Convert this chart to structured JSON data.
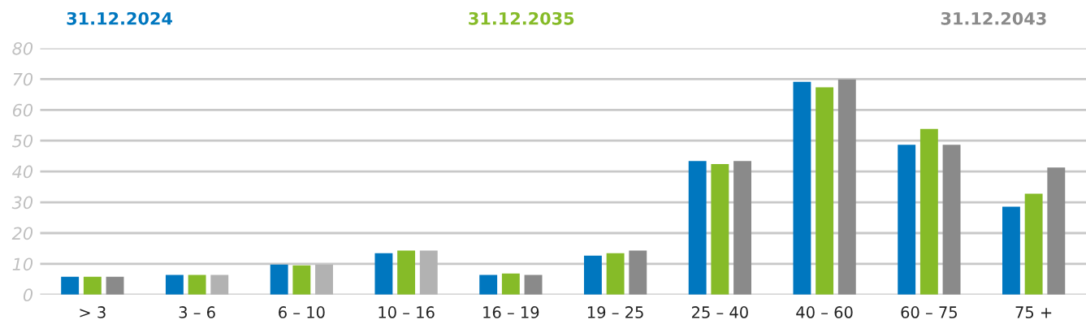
{
  "chart_data": {
    "type": "bar",
    "categories": [
      "> 3",
      "3 – 6",
      "6 – 10",
      "10 – 16",
      "16 – 19",
      "19 – 25",
      "25 – 40",
      "40 – 60",
      "60 – 75",
      "75 +"
    ],
    "series": [
      {
        "name": "31.12.2024",
        "color": "#0077bf",
        "values": [
          5.8,
          6.4,
          9.8,
          13.5,
          6.4,
          12.7,
          43.4,
          69.1,
          48.7,
          28.6
        ]
      },
      {
        "name": "31.12.2035",
        "color": "#86bb28",
        "values": [
          5.8,
          6.4,
          9.5,
          14.3,
          6.9,
          13.5,
          42.4,
          67.3,
          53.8,
          32.8
        ]
      },
      {
        "name": "31.12.2043",
        "color": "#8a8a8a",
        "colors": [
          "#8a8a8a",
          "#b2b2b2",
          "#b2b2b2",
          "#b2b2b2",
          "#8a8a8a",
          "#8a8a8a",
          "#8a8a8a",
          "#8a8a8a",
          "#8a8a8a",
          "#8a8a8a"
        ],
        "values": [
          5.8,
          6.4,
          9.8,
          14.3,
          6.4,
          14.3,
          43.4,
          69.9,
          48.7,
          41.3
        ]
      }
    ],
    "ylim": [
      0,
      80
    ],
    "yticks": [
      0,
      10,
      20,
      30,
      40,
      50,
      60,
      70,
      80
    ],
    "grid": "y",
    "legend": "top"
  }
}
